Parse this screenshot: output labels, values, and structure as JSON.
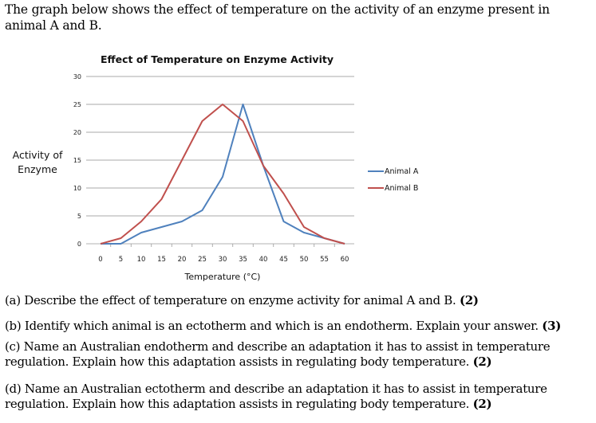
{
  "intro": "The graph below shows the effect of temperature on the activity of an enzyme present in animal A and B.",
  "chart_data": {
    "type": "line",
    "title": "Effect of Temperature on Enzyme Activity",
    "xlabel": "Temperature (°C)",
    "ylabel_line1": "Activity of",
    "ylabel_line2": "Enzyme",
    "x": [
      0,
      5,
      10,
      15,
      20,
      25,
      30,
      35,
      40,
      45,
      50,
      55,
      60
    ],
    "xlim": [
      0,
      60
    ],
    "ylim": [
      0,
      30
    ],
    "yticks": [
      0,
      5,
      10,
      15,
      20,
      25,
      30
    ],
    "grid": true,
    "legend_position": "right",
    "series": [
      {
        "name": "Animal A",
        "color": "#4F81BD",
        "values": [
          0,
          0,
          2,
          3,
          4,
          6,
          12,
          25,
          14,
          4,
          2,
          1,
          0
        ]
      },
      {
        "name": "Animal B",
        "color": "#C0504D",
        "values": [
          0,
          1,
          4,
          8,
          15,
          22,
          25,
          22,
          14,
          9,
          3,
          1,
          0
        ]
      }
    ]
  },
  "questions": [
    {
      "text": "(a)  Describe the effect of temperature on enzyme activity for animal A and B.",
      "marks": "(2)"
    },
    {
      "text": "(b)  Identify which animal is an ectotherm and which is an endotherm. Explain your answer.",
      "marks": "(3)"
    },
    {
      "text": "(c)  Name an Australian endotherm and describe an adaptation it has to assist in temperature regulation. Explain how this adaptation assists in regulating body temperature.",
      "marks": "(2)"
    },
    {
      "text": "(d)  Name an Australian ectotherm and describe an adaptation it has to assist in temperature regulation. Explain how this adaptation assists in regulating body temperature.",
      "marks": "(2)"
    }
  ]
}
